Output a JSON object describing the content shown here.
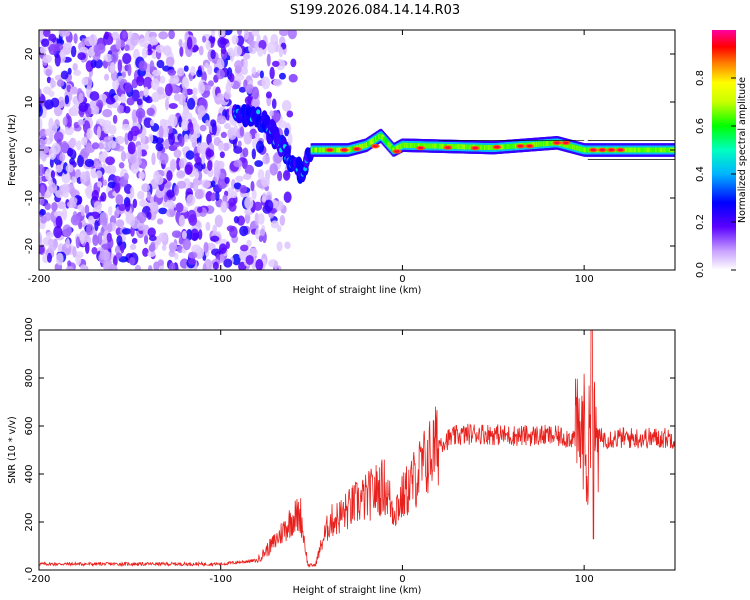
{
  "title": "S199.2026.084.14.14.R03",
  "chart_data": [
    {
      "type": "heatmap",
      "xlabel": "Height of straight line (km)",
      "ylabel": "Frequency (Hz)",
      "xlim": [
        -200,
        150
      ],
      "ylim": [
        -25,
        25
      ],
      "xticks": [
        -200,
        -100,
        0,
        100
      ],
      "yticks": [
        -20,
        -10,
        0,
        10,
        20
      ],
      "description_points": {
        "noise_region_x": [
          -200,
          -60
        ],
        "transition_region_x": [
          -90,
          -50
        ],
        "ridge": [
          {
            "x": -90,
            "f": 8
          },
          {
            "x": -80,
            "f": 7
          },
          {
            "x": -70,
            "f": 3
          },
          {
            "x": -60,
            "f": -3
          },
          {
            "x": -55,
            "f": -5
          },
          {
            "x": -50,
            "f": 0
          },
          {
            "x": -40,
            "f": 0
          },
          {
            "x": -30,
            "f": 0
          },
          {
            "x": -20,
            "f": 1
          },
          {
            "x": -12,
            "f": 3
          },
          {
            "x": -5,
            "f": 0
          },
          {
            "x": 0,
            "f": 1
          },
          {
            "x": 50,
            "f": 0.5
          },
          {
            "x": 85,
            "f": 1.5
          },
          {
            "x": 100,
            "f": 0
          },
          {
            "x": 150,
            "f": 0
          }
        ]
      },
      "colorbar": {
        "label": "Normalized spectral amplitude",
        "ticks": [
          "0.0",
          "0.2",
          "0.4",
          "0.6",
          "0.8"
        ],
        "range": [
          0,
          1
        ]
      }
    },
    {
      "type": "line",
      "xlabel": "Height of straight line (km)",
      "ylabel": "SNR (10 * v/v)",
      "xlim": [
        -200,
        150
      ],
      "ylim": [
        0,
        1000
      ],
      "xticks": [
        -200,
        -100,
        0,
        100
      ],
      "yticks": [
        0,
        200,
        400,
        600,
        800,
        1000
      ],
      "series": [
        {
          "name": "SNR",
          "color": "#e8201c",
          "x": [
            -200,
            -150,
            -100,
            -80,
            -70,
            -60,
            -56,
            -52,
            -48,
            -44,
            -40,
            -35,
            -30,
            -25,
            -20,
            -15,
            -10,
            -5,
            0,
            10,
            20,
            30,
            40,
            60,
            80,
            95,
            100,
            102,
            104,
            106,
            110,
            130,
            150
          ],
          "y": [
            25,
            25,
            25,
            40,
            120,
            220,
            230,
            20,
            20,
            120,
            200,
            220,
            250,
            280,
            300,
            330,
            350,
            250,
            300,
            420,
            530,
            560,
            570,
            560,
            560,
            550,
            580,
            420,
            700,
            540,
            550,
            550,
            550
          ]
        }
      ]
    }
  ]
}
